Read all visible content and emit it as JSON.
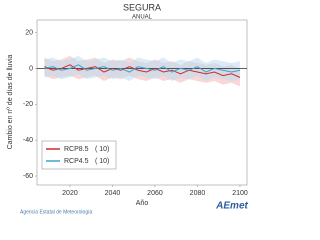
{
  "chart_data": {
    "type": "line",
    "title": "SEGURA",
    "subtitle": "ANUAL",
    "y_label": "Cambio en nº de días de lluvia",
    "x_label": "Año",
    "x": [
      2008,
      2012,
      2016,
      2020,
      2024,
      2028,
      2032,
      2036,
      2040,
      2044,
      2048,
      2052,
      2056,
      2060,
      2064,
      2068,
      2072,
      2076,
      2080,
      2084,
      2088,
      2092,
      2096,
      2100
    ],
    "series": [
      {
        "name": "RCP8.5",
        "count_label": "( 10)",
        "color": "#d62728",
        "band_color": "#f4b6b6",
        "values": [
          1,
          -1,
          0,
          2,
          -1,
          0,
          1,
          -2,
          0,
          -1,
          1,
          -1,
          -2,
          0,
          -2,
          -1,
          -3,
          -1,
          -2,
          -3,
          -2,
          -4,
          -3,
          -5
        ],
        "lower": [
          -4,
          -6,
          -5,
          -4,
          -6,
          -5,
          -4,
          -7,
          -5,
          -6,
          -4,
          -6,
          -7,
          -5,
          -7,
          -6,
          -8,
          -6,
          -7,
          -8,
          -7,
          -9,
          -8,
          -10
        ],
        "upper": [
          6,
          4,
          5,
          7,
          4,
          5,
          6,
          3,
          5,
          4,
          6,
          4,
          3,
          5,
          3,
          4,
          2,
          4,
          3,
          2,
          3,
          1,
          2,
          0
        ]
      },
      {
        "name": "RCP4.5",
        "count_label": "( 10)",
        "color": "#3ba3d0",
        "band_color": "#b9dcf0",
        "values": [
          0,
          1,
          -1,
          0,
          2,
          -1,
          0,
          1,
          -1,
          0,
          -2,
          1,
          0,
          -1,
          1,
          -2,
          0,
          -1,
          1,
          -2,
          0,
          -1,
          -2,
          -1
        ],
        "lower": [
          -5,
          -4,
          -6,
          -5,
          -3,
          -6,
          -5,
          -4,
          -6,
          -5,
          -7,
          -4,
          -5,
          -6,
          -4,
          -7,
          -5,
          -6,
          -4,
          -7,
          -5,
          -6,
          -7,
          -6
        ],
        "upper": [
          5,
          6,
          4,
          5,
          7,
          4,
          5,
          6,
          4,
          5,
          3,
          6,
          5,
          4,
          6,
          3,
          5,
          4,
          6,
          3,
          5,
          4,
          3,
          4
        ]
      }
    ],
    "xlim": [
      2004.5,
      2103.3
    ],
    "ylim": [
      -65,
      27
    ],
    "xticks": [
      2020,
      2040,
      2060,
      2080,
      2100
    ],
    "yticks": [
      20,
      0,
      -20,
      -40,
      -60
    ],
    "footer": "Agencia Estatal de Meteorología",
    "logo": "AEmet"
  }
}
